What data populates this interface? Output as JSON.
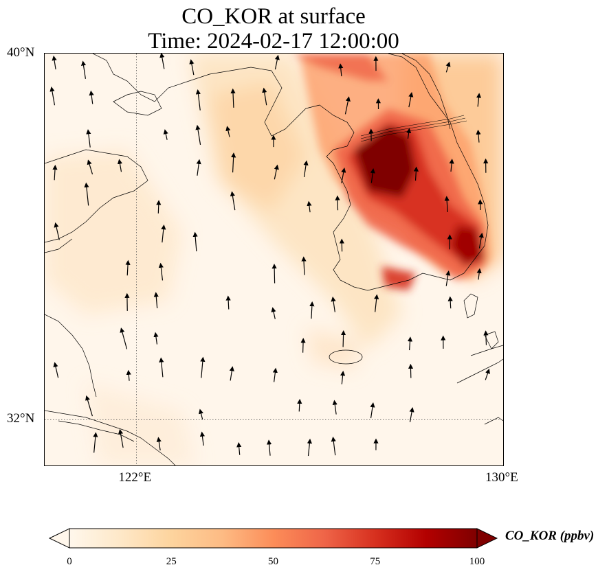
{
  "title": {
    "line1": "CO_KOR at surface",
    "line2": "Time: 2024-02-17 12:00:00"
  },
  "map": {
    "lon_range": [
      120,
      130
    ],
    "lat_range": [
      31,
      40
    ],
    "lat_ticks": [
      {
        "value": 40,
        "label": "40°N"
      },
      {
        "value": 32,
        "label": "32°N"
      }
    ],
    "lon_ticks": [
      {
        "value": 122,
        "label": "122°E"
      },
      {
        "value": 130,
        "label": "130°E"
      }
    ],
    "gridlines": {
      "lon": [
        122
      ],
      "lat": [
        32
      ]
    },
    "field": "CO_KOR",
    "colormap": "OrRd",
    "plume_description_colors": {
      "low": "#fff7ec",
      "mid": "#fdbb84",
      "high": "#d7301f",
      "max": "#7f0000"
    }
  },
  "colorbar": {
    "label": "CO_KOR (ppbv)",
    "ticks": [
      "0",
      "25",
      "50",
      "75",
      "100"
    ],
    "range": [
      0,
      100
    ],
    "extend": "both",
    "colors": [
      "#fff7ec",
      "#fee8c8",
      "#fdd49e",
      "#fdbb84",
      "#fc8d59",
      "#ef6548",
      "#d7301f",
      "#b30000",
      "#7f0000"
    ]
  }
}
